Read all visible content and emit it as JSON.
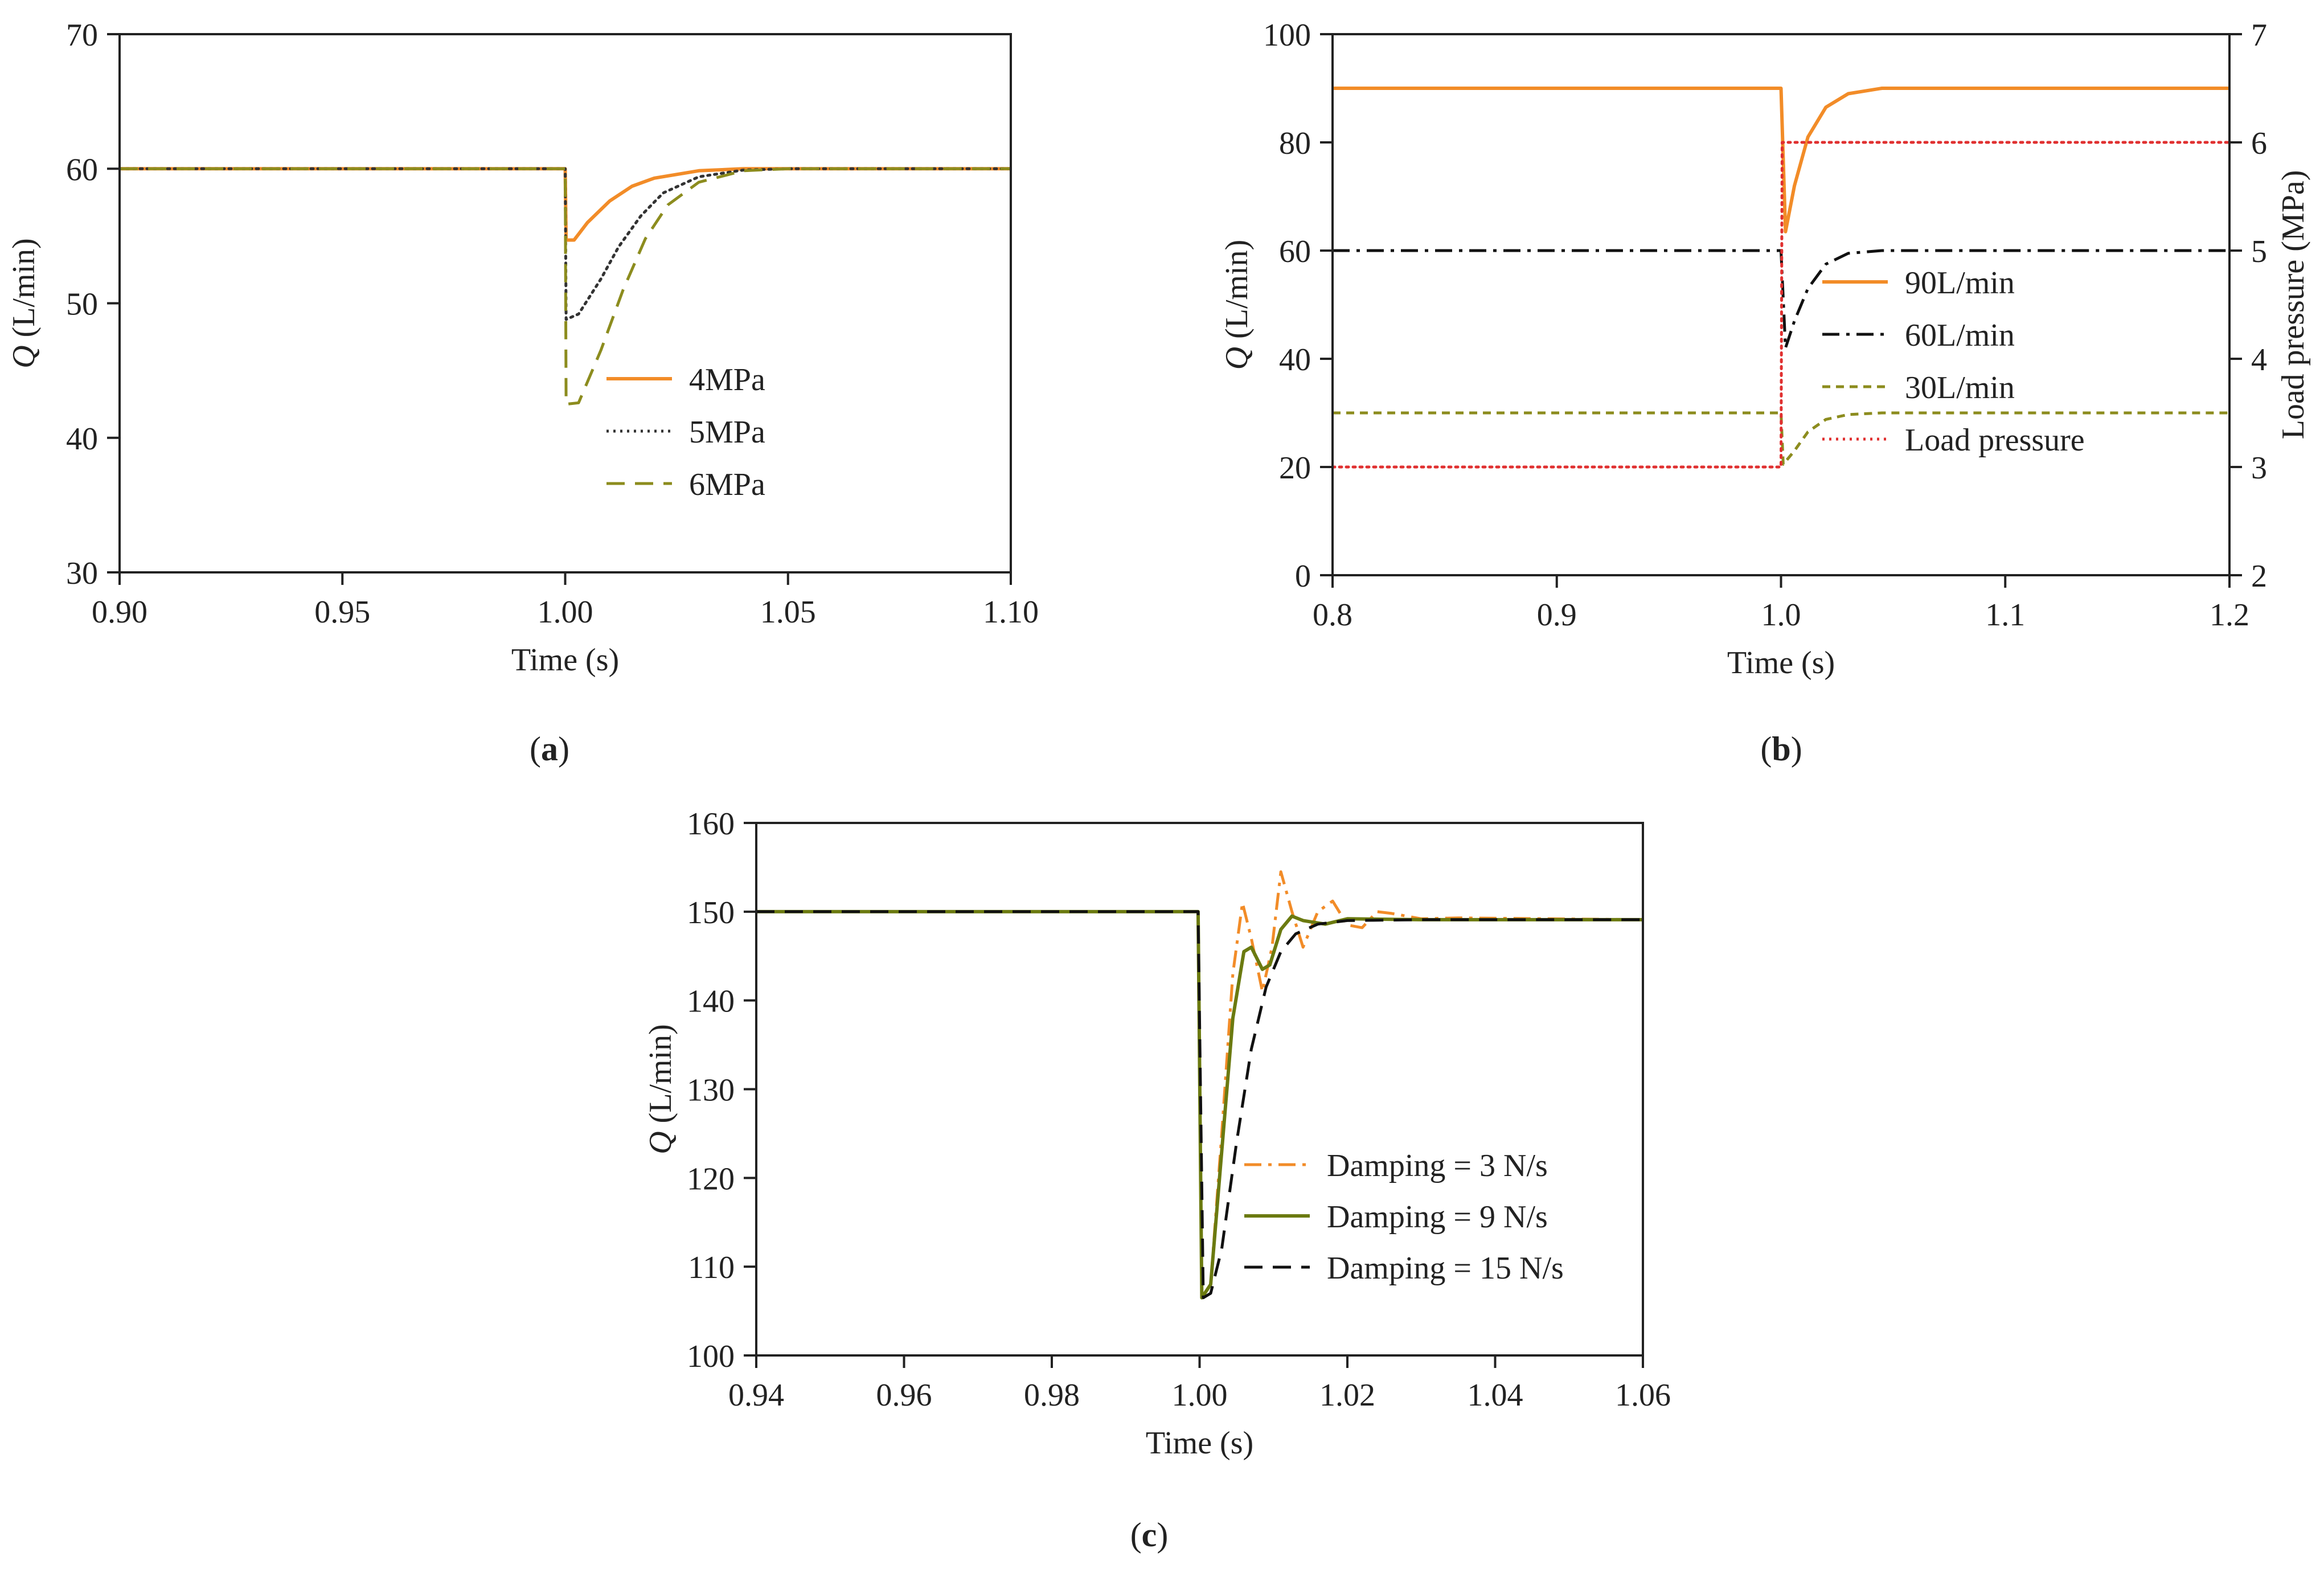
{
  "chart_data": [
    {
      "id": "a",
      "type": "line",
      "panel_label": "a",
      "title": "",
      "xlabel": "Time (s)",
      "ylabel_symbol": "Q",
      "ylabel_unit": "(L/min)",
      "xlim": [
        0.9,
        1.1
      ],
      "ylim": [
        30,
        70
      ],
      "xticks": [
        0.9,
        0.95,
        1.0,
        1.05,
        1.1
      ],
      "xtick_labels": [
        "0.90",
        "0.95",
        "1.00",
        "1.05",
        "1.10"
      ],
      "yticks": [
        30,
        40,
        50,
        60,
        70
      ],
      "ytick_labels": [
        "30",
        "40",
        "50",
        "60",
        "70"
      ],
      "legend_position": "lower-right",
      "series": [
        {
          "name": "4MPa",
          "color": "#F28C28",
          "dash": "solid",
          "points": [
            [
              0.9,
              60
            ],
            [
              1.0,
              60
            ],
            [
              1.0002,
              54.7
            ],
            [
              1.002,
              54.7
            ],
            [
              1.005,
              56.0
            ],
            [
              1.01,
              57.6
            ],
            [
              1.015,
              58.7
            ],
            [
              1.02,
              59.3
            ],
            [
              1.03,
              59.85
            ],
            [
              1.04,
              60
            ],
            [
              1.1,
              60
            ]
          ]
        },
        {
          "name": "5MPa",
          "color": "#333333",
          "dash": "dotted",
          "points": [
            [
              0.9,
              60
            ],
            [
              1.0,
              60
            ],
            [
              1.0002,
              48.8
            ],
            [
              1.003,
              49.2
            ],
            [
              1.008,
              51.8
            ],
            [
              1.012,
              54.2
            ],
            [
              1.017,
              56.5
            ],
            [
              1.022,
              58.2
            ],
            [
              1.03,
              59.4
            ],
            [
              1.04,
              59.9
            ],
            [
              1.05,
              60
            ],
            [
              1.1,
              60
            ]
          ]
        },
        {
          "name": "6MPa",
          "color": "#8C8C1E",
          "dash": "dashed",
          "points": [
            [
              0.9,
              60
            ],
            [
              1.0,
              60
            ],
            [
              1.0002,
              42.5
            ],
            [
              1.003,
              42.6
            ],
            [
              1.008,
              46.5
            ],
            [
              1.013,
              51.0
            ],
            [
              1.018,
              54.8
            ],
            [
              1.023,
              57.3
            ],
            [
              1.03,
              59.0
            ],
            [
              1.04,
              59.85
            ],
            [
              1.05,
              60
            ],
            [
              1.1,
              60
            ]
          ]
        }
      ]
    },
    {
      "id": "b",
      "type": "line",
      "panel_label": "b",
      "title": "",
      "xlabel": "Time (s)",
      "ylabel_symbol": "Q",
      "ylabel_unit": "(L/min)",
      "y2label": "Load pressure (MPa)",
      "xlim": [
        0.8,
        1.2
      ],
      "ylim": [
        0,
        100
      ],
      "y2lim": [
        2,
        7
      ],
      "xticks": [
        0.8,
        0.9,
        1.0,
        1.1,
        1.2
      ],
      "xtick_labels": [
        "0.8",
        "0.9",
        "1.0",
        "1.1",
        "1.2"
      ],
      "yticks": [
        0,
        20,
        40,
        60,
        80,
        100
      ],
      "ytick_labels": [
        "0",
        "20",
        "40",
        "60",
        "80",
        "100"
      ],
      "y2ticks": [
        2,
        3,
        4,
        5,
        6,
        7
      ],
      "y2tick_labels": [
        "2",
        "3",
        "4",
        "5",
        "6",
        "7"
      ],
      "legend_position": "right",
      "series": [
        {
          "name": "90L/min",
          "color": "#F28C28",
          "dash": "solid",
          "axis": "left",
          "points": [
            [
              0.8,
              90
            ],
            [
              1.0,
              90
            ],
            [
              1.002,
              63.5
            ],
            [
              1.006,
              72
            ],
            [
              1.012,
              81
            ],
            [
              1.02,
              86.5
            ],
            [
              1.03,
              89
            ],
            [
              1.045,
              90
            ],
            [
              1.2,
              90
            ]
          ]
        },
        {
          "name": "60L/min",
          "color": "#111111",
          "dash": "dashdot",
          "axis": "left",
          "points": [
            [
              0.8,
              60
            ],
            [
              1.0,
              60
            ],
            [
              1.002,
              42
            ],
            [
              1.006,
              47
            ],
            [
              1.012,
              53
            ],
            [
              1.02,
              57.5
            ],
            [
              1.03,
              59.5
            ],
            [
              1.045,
              60
            ],
            [
              1.2,
              60
            ]
          ]
        },
        {
          "name": "30L/min",
          "color": "#8C8C1E",
          "dash": "shortdash",
          "axis": "left",
          "points": [
            [
              0.8,
              30
            ],
            [
              1.0,
              30
            ],
            [
              1.001,
              20.5
            ],
            [
              1.006,
              23
            ],
            [
              1.012,
              26.5
            ],
            [
              1.02,
              28.8
            ],
            [
              1.03,
              29.7
            ],
            [
              1.045,
              30
            ],
            [
              1.2,
              30
            ]
          ]
        },
        {
          "name": "Load pressure",
          "color": "#E03030",
          "dash": "dotted",
          "axis": "right",
          "points": [
            [
              0.8,
              3
            ],
            [
              1.0,
              3
            ],
            [
              1.0005,
              6
            ],
            [
              1.2,
              6
            ]
          ]
        }
      ]
    },
    {
      "id": "c",
      "type": "line",
      "panel_label": "c",
      "title": "",
      "xlabel": "Time (s)",
      "ylabel_symbol": "Q",
      "ylabel_unit": "(L/min)",
      "xlim": [
        0.94,
        1.06
      ],
      "ylim": [
        100,
        160
      ],
      "xticks": [
        0.94,
        0.96,
        0.98,
        1.0,
        1.02,
        1.04,
        1.06
      ],
      "xtick_labels": [
        "0.94",
        "0.96",
        "0.98",
        "1.00",
        "1.02",
        "1.04",
        "1.06"
      ],
      "yticks": [
        100,
        110,
        120,
        130,
        140,
        150,
        160
      ],
      "ytick_labels": [
        "100",
        "110",
        "120",
        "130",
        "140",
        "150",
        "160"
      ],
      "legend_position": "lower-right",
      "series": [
        {
          "name": "Damping = 3 N/s",
          "color": "#F28C28",
          "dash": "dashdot",
          "points": [
            [
              0.94,
              150
            ],
            [
              0.9998,
              150
            ],
            [
              1.0003,
              106.5
            ],
            [
              1.0015,
              108
            ],
            [
              1.003,
              125
            ],
            [
              1.0045,
              143
            ],
            [
              1.0058,
              151
            ],
            [
              1.007,
              147
            ],
            [
              1.0085,
              141
            ],
            [
              1.0098,
              146
            ],
            [
              1.011,
              154.5
            ],
            [
              1.0125,
              150
            ],
            [
              1.014,
              146
            ],
            [
              1.016,
              150
            ],
            [
              1.018,
              151.2
            ],
            [
              1.02,
              148.5
            ],
            [
              1.022,
              148.2
            ],
            [
              1.024,
              150
            ],
            [
              1.026,
              149.8
            ],
            [
              1.03,
              149.2
            ],
            [
              1.035,
              149.3
            ],
            [
              1.06,
              149.1
            ]
          ]
        },
        {
          "name": "Damping = 9 N/s",
          "color": "#6B7A10",
          "dash": "solid",
          "points": [
            [
              0.94,
              150
            ],
            [
              0.9998,
              150
            ],
            [
              1.0003,
              106.5
            ],
            [
              1.0015,
              108
            ],
            [
              1.003,
              123
            ],
            [
              1.0045,
              138
            ],
            [
              1.006,
              145.5
            ],
            [
              1.007,
              146
            ],
            [
              1.0085,
              143.5
            ],
            [
              1.0095,
              144
            ],
            [
              1.011,
              148
            ],
            [
              1.0125,
              149.5
            ],
            [
              1.014,
              149
            ],
            [
              1.017,
              148.6
            ],
            [
              1.02,
              149.2
            ],
            [
              1.03,
              149.1
            ],
            [
              1.06,
              149.1
            ]
          ]
        },
        {
          "name": "Damping = 15 N/s",
          "color": "#111111",
          "dash": "dashed",
          "points": [
            [
              0.94,
              150
            ],
            [
              0.9998,
              150
            ],
            [
              1.0005,
              106.5
            ],
            [
              1.0015,
              107
            ],
            [
              1.003,
              112
            ],
            [
              1.005,
              124
            ],
            [
              1.007,
              134.5
            ],
            [
              1.009,
              141.5
            ],
            [
              1.011,
              145.5
            ],
            [
              1.013,
              147.5
            ],
            [
              1.016,
              148.6
            ],
            [
              1.02,
              149
            ],
            [
              1.03,
              149.1
            ],
            [
              1.06,
              149.1
            ]
          ]
        }
      ]
    }
  ]
}
